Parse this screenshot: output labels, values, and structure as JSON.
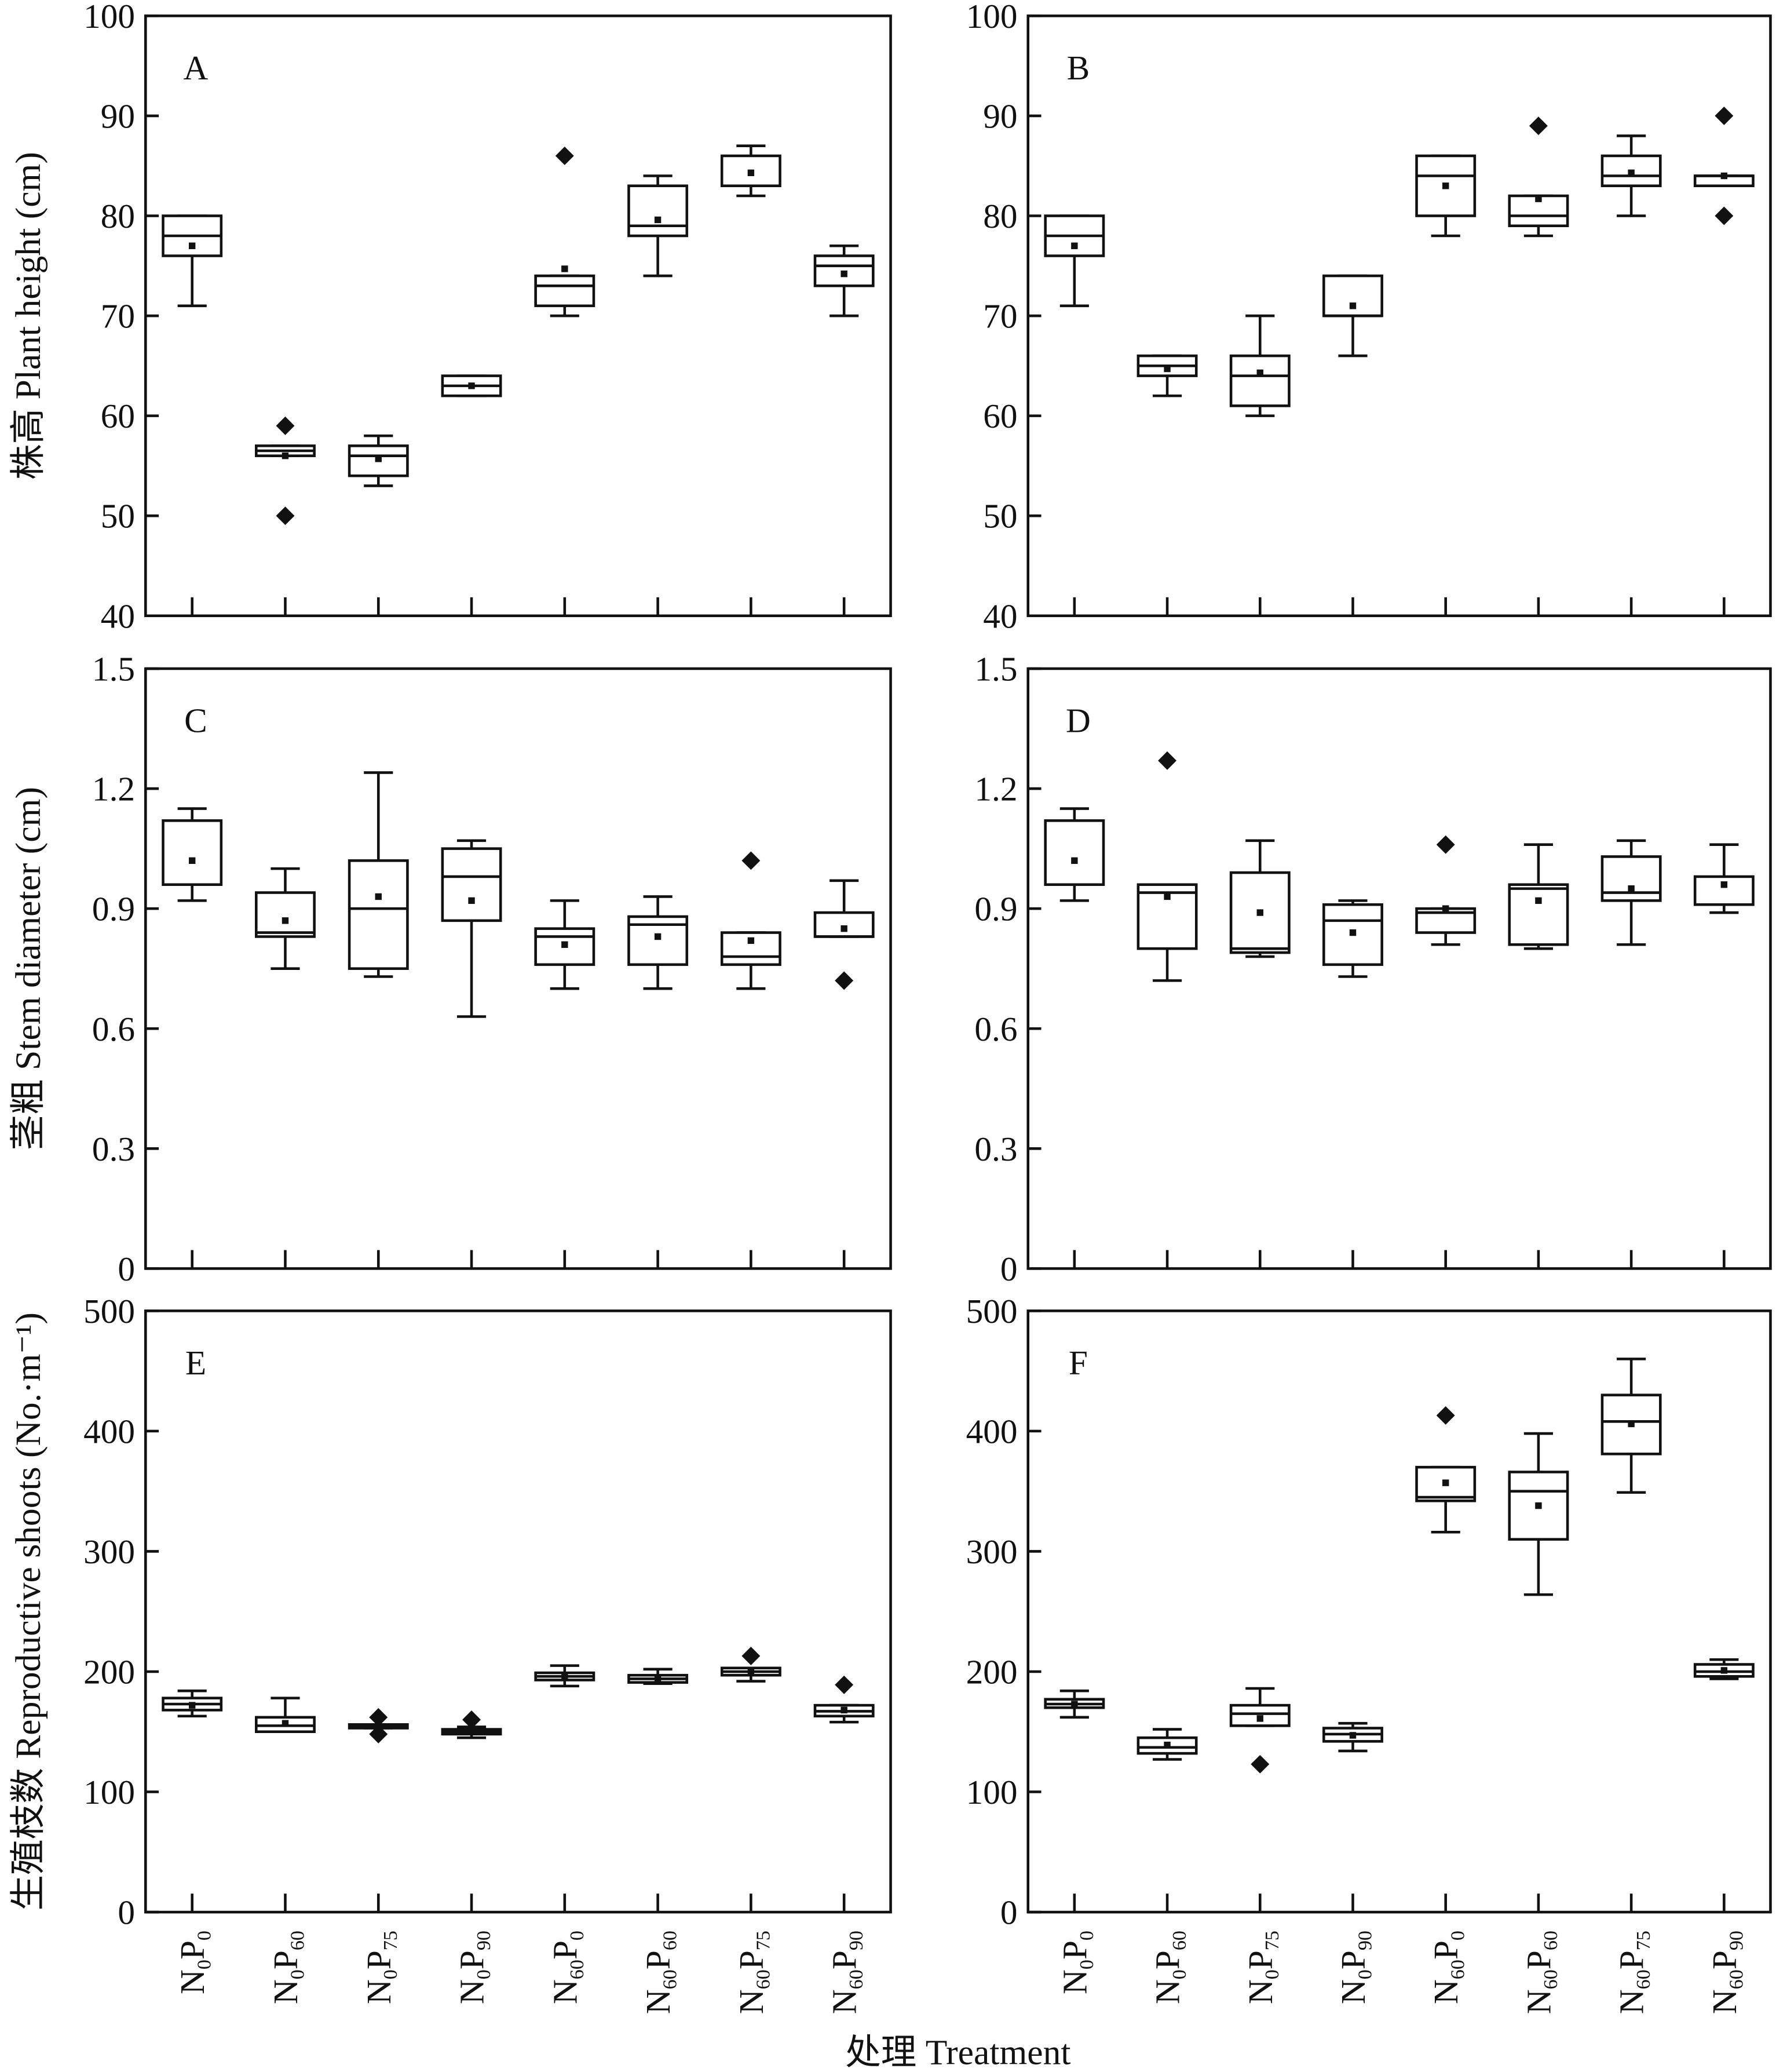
{
  "x_title": "处理 Treatment",
  "categories": [
    [
      "N",
      "0",
      "P",
      "0"
    ],
    [
      "N",
      "0",
      "P",
      "60"
    ],
    [
      "N",
      "0",
      "P",
      "75"
    ],
    [
      "N",
      "0",
      "P",
      "90"
    ],
    [
      "N",
      "60",
      "P",
      "0"
    ],
    [
      "N",
      "60",
      "P",
      "60"
    ],
    [
      "N",
      "60",
      "P",
      "75"
    ],
    [
      "N",
      "60",
      "P",
      "90"
    ]
  ],
  "chart_data": [
    {
      "type": "box",
      "panel": "A",
      "ylabel": "株高 Plant height (cm)",
      "ylim": [
        40,
        100
      ],
      "yticks": [
        40,
        50,
        60,
        70,
        80,
        90,
        100
      ],
      "tick_labels": [
        "40",
        "50",
        "60",
        "70",
        "80",
        "90",
        "100"
      ],
      "boxes": [
        [
          71,
          76,
          78,
          80,
          80,
          77,
          []
        ],
        [
          56,
          56,
          56.5,
          57,
          57,
          56,
          [
            59,
            50
          ]
        ],
        [
          53,
          54,
          56,
          57,
          58,
          55.7,
          []
        ],
        [
          62,
          62,
          63,
          64,
          64,
          63,
          []
        ],
        [
          70,
          71,
          73,
          74,
          74,
          74.7,
          [
            86
          ]
        ],
        [
          74,
          78,
          79,
          83,
          84,
          79.6,
          []
        ],
        [
          82,
          83,
          83,
          86,
          87,
          84.3,
          []
        ],
        [
          70,
          73,
          75,
          76,
          77,
          74.2,
          []
        ]
      ]
    },
    {
      "type": "box",
      "panel": "B",
      "ylabel": "",
      "ylim": [
        40,
        100
      ],
      "yticks": [
        40,
        50,
        60,
        70,
        80,
        90,
        100
      ],
      "tick_labels": [
        "40",
        "50",
        "60",
        "70",
        "80",
        "90",
        "100"
      ],
      "boxes": [
        [
          71,
          76,
          78,
          80,
          80,
          77,
          []
        ],
        [
          62,
          64,
          65,
          66,
          66,
          64.7,
          []
        ],
        [
          60,
          61,
          64,
          66,
          70,
          64.3,
          []
        ],
        [
          66,
          70,
          70,
          74,
          74,
          71,
          []
        ],
        [
          78,
          80,
          84,
          86,
          86,
          83,
          []
        ],
        [
          78,
          79,
          80,
          82,
          82,
          81.7,
          [
            89
          ]
        ],
        [
          80,
          83,
          84,
          86,
          88,
          84.3,
          []
        ],
        [
          83,
          83,
          84,
          84,
          84,
          84,
          [
            90,
            80
          ]
        ]
      ]
    },
    {
      "type": "box",
      "panel": "C",
      "ylabel": "茎粗 Stem diameter (cm)",
      "ylim": [
        0,
        1.5
      ],
      "yticks": [
        0,
        0.3,
        0.6,
        0.9,
        1.2,
        1.5
      ],
      "tick_labels": [
        "0",
        "0.3",
        "0.6",
        "0.9",
        "1.2",
        "1.5"
      ],
      "boxes": [
        [
          0.92,
          0.96,
          0.96,
          1.12,
          1.15,
          1.02,
          []
        ],
        [
          0.75,
          0.83,
          0.84,
          0.94,
          1.0,
          0.87,
          []
        ],
        [
          0.73,
          0.75,
          0.9,
          1.02,
          1.24,
          0.93,
          []
        ],
        [
          0.63,
          0.87,
          0.98,
          1.05,
          1.07,
          0.92,
          []
        ],
        [
          0.7,
          0.76,
          0.83,
          0.85,
          0.92,
          0.81,
          []
        ],
        [
          0.7,
          0.76,
          0.86,
          0.88,
          0.93,
          0.83,
          []
        ],
        [
          0.7,
          0.76,
          0.78,
          0.84,
          0.84,
          0.82,
          [
            1.02
          ]
        ],
        [
          0.83,
          0.83,
          0.83,
          0.89,
          0.97,
          0.85,
          [
            0.72
          ]
        ]
      ]
    },
    {
      "type": "box",
      "panel": "D",
      "ylabel": "",
      "ylim": [
        0,
        1.5
      ],
      "yticks": [
        0,
        0.3,
        0.6,
        0.9,
        1.2,
        1.5
      ],
      "tick_labels": [
        "0",
        "0.3",
        "0.6",
        "0.9",
        "1.2",
        "1.5"
      ],
      "boxes": [
        [
          0.92,
          0.96,
          0.96,
          1.12,
          1.15,
          1.02,
          []
        ],
        [
          0.72,
          0.8,
          0.94,
          0.96,
          0.96,
          0.93,
          [
            1.27
          ]
        ],
        [
          0.78,
          0.79,
          0.8,
          0.99,
          1.07,
          0.89,
          []
        ],
        [
          0.73,
          0.76,
          0.87,
          0.91,
          0.92,
          0.84,
          []
        ],
        [
          0.81,
          0.84,
          0.89,
          0.9,
          0.9,
          0.9,
          [
            1.06
          ]
        ],
        [
          0.8,
          0.81,
          0.95,
          0.96,
          1.06,
          0.92,
          []
        ],
        [
          0.81,
          0.92,
          0.94,
          1.03,
          1.07,
          0.95,
          []
        ],
        [
          0.89,
          0.91,
          0.91,
          0.98,
          1.06,
          0.96,
          []
        ]
      ]
    },
    {
      "type": "box",
      "panel": "E",
      "ylabel": "生殖枝数 Reproductive shoots (No.·m⁻¹)",
      "ylim": [
        0,
        500
      ],
      "yticks": [
        0,
        100,
        200,
        300,
        400,
        500
      ],
      "tick_labels": [
        "0",
        "100",
        "200",
        "300",
        "400",
        "500"
      ],
      "boxes": [
        [
          163,
          168,
          173,
          178,
          184,
          172,
          []
        ],
        [
          150,
          150,
          155,
          162,
          178,
          157,
          []
        ],
        [
          153,
          153,
          155,
          156,
          156,
          155,
          [
            162,
            148
          ]
        ],
        [
          145,
          148,
          150,
          152,
          154,
          151,
          [
            160
          ]
        ],
        [
          188,
          193,
          196,
          199,
          205,
          196,
          []
        ],
        [
          190,
          191,
          194,
          197,
          202,
          194,
          []
        ],
        [
          192,
          197,
          200,
          203,
          203,
          200,
          [
            213
          ]
        ],
        [
          158,
          163,
          167,
          172,
          172,
          168,
          [
            189
          ]
        ]
      ]
    },
    {
      "type": "box",
      "panel": "F",
      "ylabel": "",
      "ylim": [
        0,
        500
      ],
      "yticks": [
        0,
        100,
        200,
        300,
        400,
        500
      ],
      "tick_labels": [
        "0",
        "100",
        "200",
        "300",
        "400",
        "500"
      ],
      "boxes": [
        [
          162,
          170,
          173,
          177,
          184,
          173,
          []
        ],
        [
          127,
          132,
          137,
          145,
          152,
          139,
          []
        ],
        [
          155,
          155,
          165,
          172,
          186,
          161,
          [
            123
          ]
        ],
        [
          134,
          142,
          148,
          153,
          157,
          147,
          []
        ],
        [
          316,
          342,
          345,
          370,
          370,
          357,
          [
            413
          ]
        ],
        [
          264,
          310,
          350,
          366,
          398,
          338,
          []
        ],
        [
          349,
          381,
          408,
          430,
          460,
          406,
          []
        ],
        [
          194,
          196,
          200,
          206,
          210,
          201,
          []
        ]
      ]
    }
  ]
}
